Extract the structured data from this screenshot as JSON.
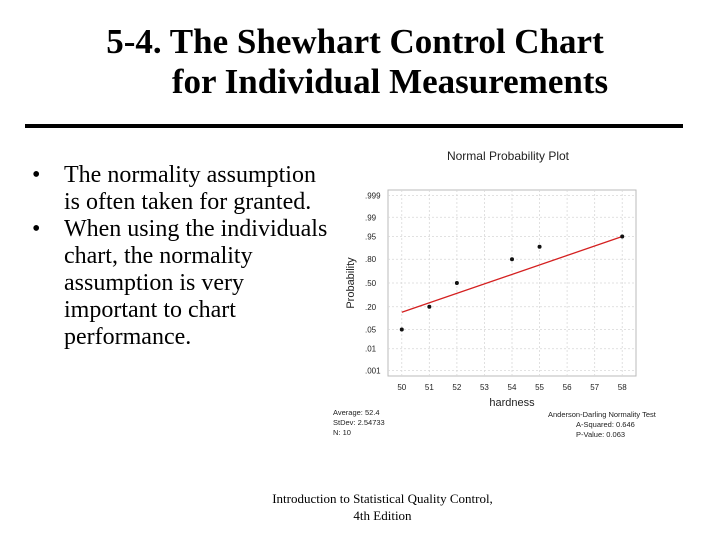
{
  "slide": {
    "title_line1": "5-4. The Shewhart Control Chart",
    "title_line2": "for Individual Measurements",
    "bullets": [
      "The normality assumption is often taken for granted.",
      "When using the individuals chart, the normality assumption is very important to chart performance."
    ],
    "bullet_glyph": "•",
    "footer_line1": "Introduction to Statistical Quality Control,",
    "footer_line2": "4th Edition"
  },
  "chart_data": {
    "type": "scatter",
    "title": "Normal Probability Plot",
    "xlabel": "hardness",
    "ylabel": "Probability",
    "x_ticks": [
      "50",
      "51",
      "52",
      "53",
      "54",
      "55",
      "56",
      "57",
      "58"
    ],
    "y_ticks": [
      ".999",
      ".99",
      ".95",
      ".80",
      ".50",
      ".20",
      ".05",
      ".01",
      ".001"
    ],
    "xlim": [
      49.5,
      58.5
    ],
    "points": [
      {
        "x": 50,
        "y": 0.05
      },
      {
        "x": 51,
        "y": 0.2
      },
      {
        "x": 52,
        "y": 0.5
      },
      {
        "x": 54,
        "y": 0.8
      },
      {
        "x": 55,
        "y": 0.9
      },
      {
        "x": 58,
        "y": 0.95
      }
    ],
    "fit_line": {
      "x1": 50,
      "x2": 58,
      "p1": 0.15,
      "p2": 0.95
    },
    "fit_color": "#d42020",
    "stats_left": [
      "Average: 52.4",
      "StDev: 2.54733",
      "N: 10"
    ],
    "stats_right": [
      "Anderson-Darling Normality Test",
      "A-Squared: 0.646",
      "P-Value:  0.063"
    ]
  }
}
